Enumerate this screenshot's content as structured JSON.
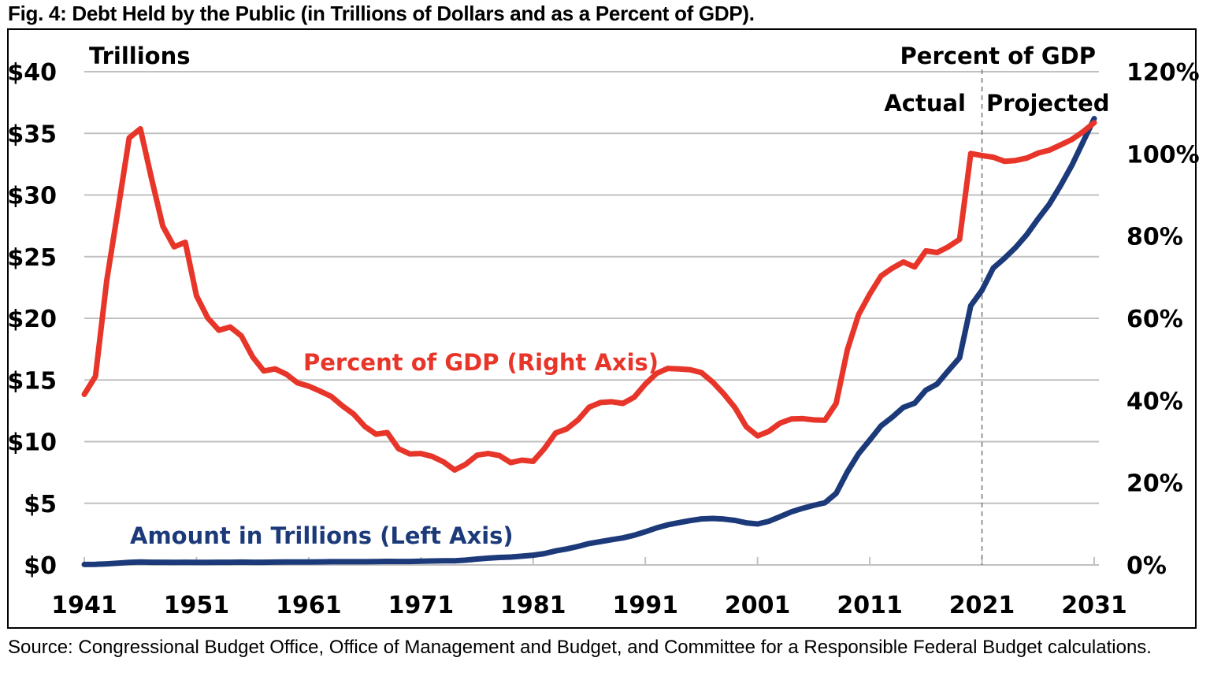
{
  "figure": {
    "title": "Fig. 4: Debt Held by the Public (in Trillions of Dollars and as a Percent of GDP).",
    "source": "Source: Congressional Budget Office, Office of Management and Budget, and Committee for a Responsible Federal Budget calculations."
  },
  "colors": {
    "percent_line": "#e8352a",
    "amount_line": "#1c3a7a",
    "gridline": "#c0c0c0",
    "divider": "#777777"
  },
  "chart_data": {
    "type": "line",
    "title": "Debt Held by the Public (in Trillions of Dollars and as a Percent of GDP)",
    "xlabel": "",
    "ylabel_left": "Trillions",
    "ylabel_right": "Percent of GDP",
    "xlim": [
      1941,
      2031
    ],
    "ylim_left": [
      0,
      40
    ],
    "ylim_right": [
      0,
      120
    ],
    "grid": true,
    "x_ticks": [
      "1941",
      "1951",
      "1961",
      "1971",
      "1981",
      "1991",
      "2001",
      "2011",
      "2021",
      "2031"
    ],
    "y_left_ticks": [
      "$0",
      "$5",
      "$10",
      "$15",
      "$20",
      "$25",
      "$30",
      "$35",
      "$40"
    ],
    "y_right_ticks": [
      "0%",
      "20%",
      "40%",
      "60%",
      "80%",
      "100%",
      "120%"
    ],
    "annotations": {
      "left_axis_title": "Trillions",
      "right_axis_title": "Percent of GDP",
      "actual": "Actual",
      "projected": "Projected",
      "divider_year": 2021
    },
    "x": [
      1941,
      1942,
      1943,
      1944,
      1945,
      1946,
      1947,
      1948,
      1949,
      1950,
      1951,
      1952,
      1953,
      1954,
      1955,
      1956,
      1957,
      1958,
      1959,
      1960,
      1961,
      1962,
      1963,
      1964,
      1965,
      1966,
      1967,
      1968,
      1969,
      1970,
      1971,
      1972,
      1973,
      1974,
      1975,
      1976,
      1977,
      1978,
      1979,
      1980,
      1981,
      1982,
      1983,
      1984,
      1985,
      1986,
      1987,
      1988,
      1989,
      1990,
      1991,
      1992,
      1993,
      1994,
      1995,
      1996,
      1997,
      1998,
      1999,
      2000,
      2001,
      2002,
      2003,
      2004,
      2005,
      2006,
      2007,
      2008,
      2009,
      2010,
      2011,
      2012,
      2013,
      2014,
      2015,
      2016,
      2017,
      2018,
      2019,
      2020,
      2021,
      2022,
      2023,
      2024,
      2025,
      2026,
      2027,
      2028,
      2029,
      2030,
      2031
    ],
    "series": [
      {
        "name": "Percent of GDP (Right Axis)",
        "axis": "right",
        "values": [
          41.5,
          45.9,
          69.2,
          86.3,
          103.9,
          106.1,
          93.9,
          82.4,
          77.4,
          78.5,
          65.5,
          60.1,
          57.1,
          57.9,
          55.7,
          50.6,
          47.2,
          47.7,
          46.4,
          44.3,
          43.5,
          42.3,
          41.0,
          38.7,
          36.7,
          33.7,
          31.8,
          32.2,
          28.3,
          27.0,
          27.1,
          26.4,
          25.1,
          23.1,
          24.5,
          26.7,
          27.1,
          26.6,
          24.9,
          25.5,
          25.2,
          28.3,
          32.1,
          33.1,
          35.3,
          38.4,
          39.5,
          39.7,
          39.3,
          40.8,
          44.0,
          46.6,
          47.8,
          47.7,
          47.5,
          46.8,
          44.5,
          41.6,
          38.2,
          33.6,
          31.4,
          32.5,
          34.5,
          35.5,
          35.6,
          35.3,
          35.2,
          39.3,
          52.3,
          60.9,
          65.9,
          70.3,
          72.2,
          73.7,
          72.5,
          76.4,
          76.0,
          77.4,
          79.2,
          100.1,
          99.6,
          99.2,
          98.2,
          98.4,
          99.0,
          100.2,
          100.9,
          102.2,
          103.5,
          105.4,
          107.6
        ]
      },
      {
        "name": "Amount in Trillions (Left Axis)",
        "axis": "left",
        "values": [
          0.04,
          0.05,
          0.09,
          0.14,
          0.21,
          0.24,
          0.22,
          0.22,
          0.21,
          0.22,
          0.21,
          0.21,
          0.22,
          0.22,
          0.23,
          0.22,
          0.22,
          0.23,
          0.24,
          0.24,
          0.24,
          0.25,
          0.26,
          0.26,
          0.26,
          0.26,
          0.27,
          0.29,
          0.28,
          0.28,
          0.3,
          0.32,
          0.34,
          0.34,
          0.39,
          0.48,
          0.55,
          0.61,
          0.64,
          0.71,
          0.79,
          0.92,
          1.14,
          1.3,
          1.5,
          1.74,
          1.89,
          2.05,
          2.19,
          2.41,
          2.69,
          3.0,
          3.25,
          3.43,
          3.6,
          3.73,
          3.77,
          3.72,
          3.61,
          3.41,
          3.32,
          3.54,
          3.91,
          4.3,
          4.59,
          4.83,
          5.04,
          5.8,
          7.54,
          9.02,
          10.13,
          11.28,
          11.98,
          12.78,
          13.12,
          14.17,
          14.67,
          15.75,
          16.8,
          21.02,
          22.28,
          24.07,
          24.86,
          25.75,
          26.79,
          28.07,
          29.25,
          30.76,
          32.39,
          34.3,
          36.2
        ]
      }
    ],
    "series_labels": {
      "percent": "Percent of GDP (Right Axis)",
      "amount": "Amount in Trillions (Left Axis)"
    }
  }
}
